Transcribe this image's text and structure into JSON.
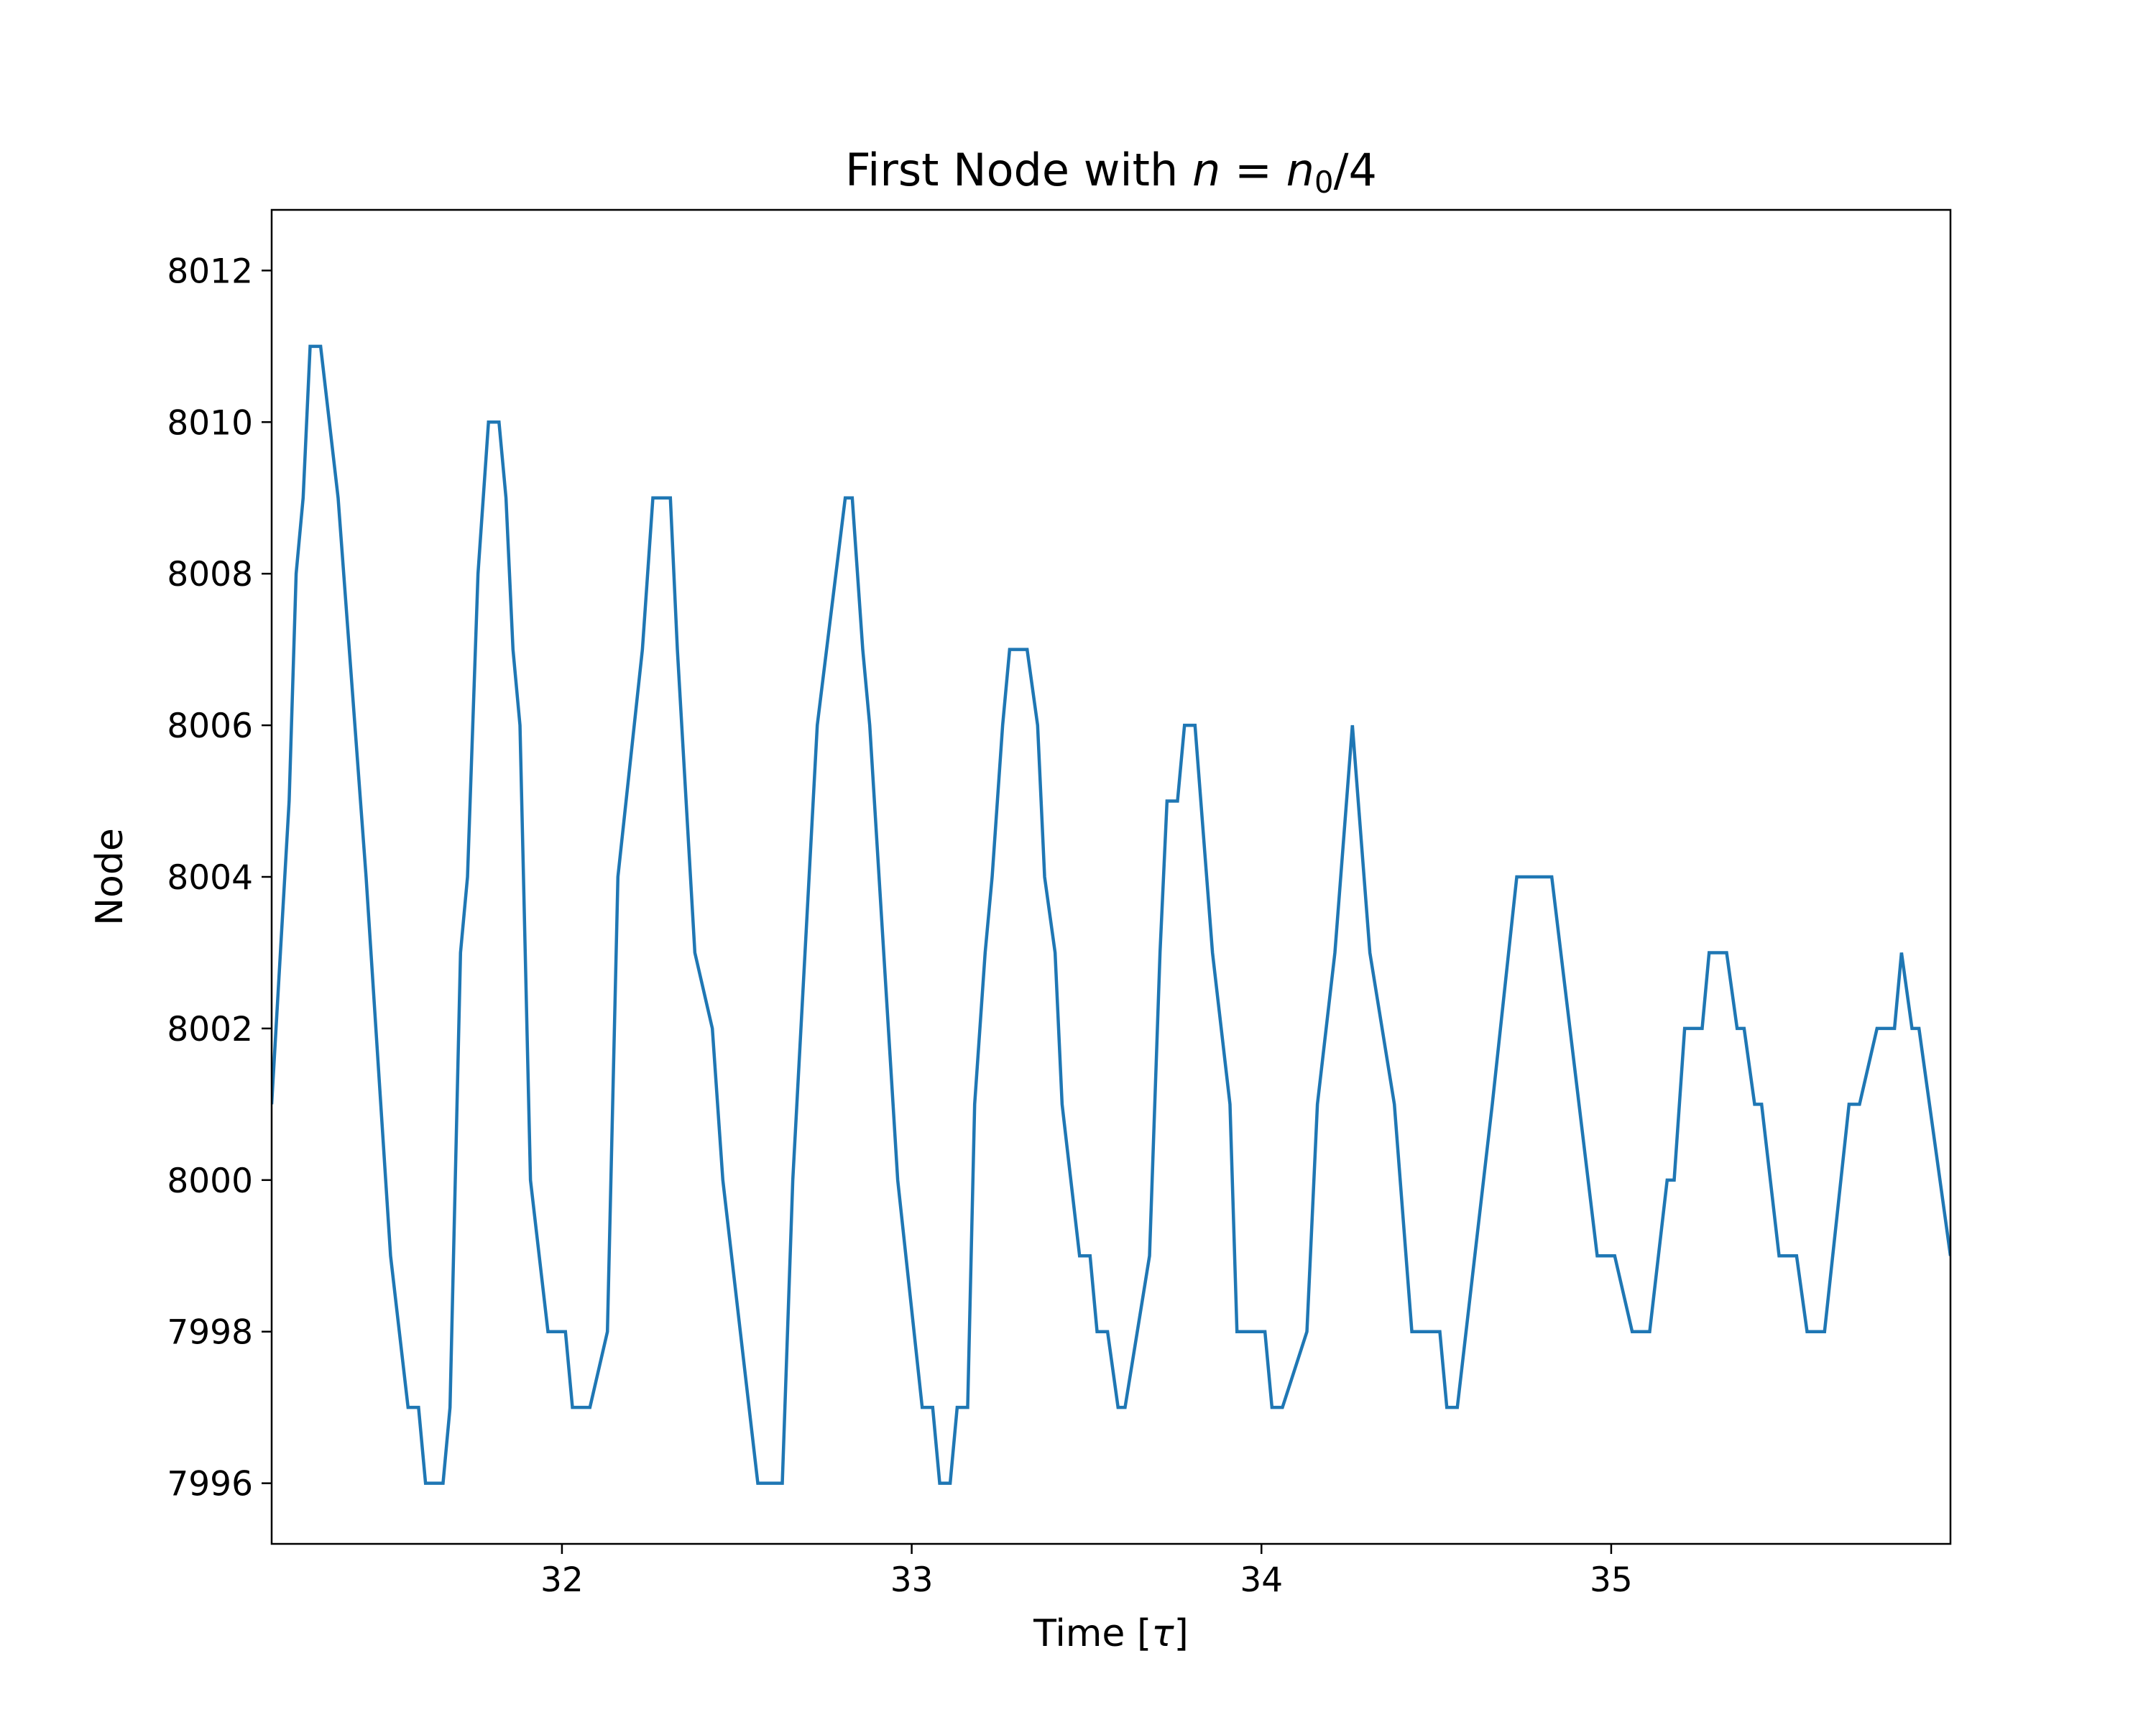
{
  "chart_data": {
    "type": "line",
    "title": {
      "prefix": "First Node with ",
      "n": "n",
      "eq": " = ",
      "n0": "n",
      "n0_sub": "0",
      "suffix": "/4"
    },
    "xlabel": {
      "text": "Time [",
      "tau": "τ",
      "close": "]"
    },
    "ylabel": "Node",
    "xlim": [
      31.17,
      35.97
    ],
    "ylim": [
      7995.2,
      8012.8
    ],
    "xticks": [
      32,
      33,
      34,
      35
    ],
    "yticks": [
      7996,
      7998,
      8000,
      8002,
      8004,
      8006,
      8008,
      8010,
      8012
    ],
    "grid": false,
    "color": "#1f77b4",
    "series": [
      {
        "x": [
          31.17,
          31.22,
          31.24,
          31.26,
          31.28,
          31.31,
          31.36,
          31.44,
          31.51,
          31.56,
          31.59,
          31.61,
          31.66,
          31.68,
          31.71,
          31.73,
          31.76,
          31.79,
          31.82,
          31.84,
          31.86,
          31.88,
          31.91,
          31.96,
          32.01,
          32.03,
          32.06,
          32.08,
          32.13,
          32.16,
          32.23,
          32.26,
          32.31,
          32.33,
          32.38,
          32.43,
          32.46,
          32.51,
          32.56,
          32.58,
          32.63,
          32.66,
          32.73,
          32.81,
          32.83,
          32.86,
          32.88,
          32.96,
          33.03,
          33.06,
          33.08,
          33.11,
          33.13,
          33.16,
          33.18,
          33.21,
          33.23,
          33.26,
          33.28,
          33.33,
          33.36,
          33.38,
          33.41,
          33.43,
          33.48,
          33.51,
          33.53,
          33.56,
          33.59,
          33.61,
          33.68,
          33.71,
          33.73,
          33.76,
          33.78,
          33.81,
          33.86,
          33.91,
          33.93,
          34.01,
          34.03,
          34.06,
          34.13,
          34.16,
          34.21,
          34.26,
          34.31,
          34.38,
          34.43,
          34.51,
          34.53,
          34.56,
          34.61,
          34.66,
          34.73,
          34.76,
          34.83,
          34.96,
          35.01,
          35.06,
          35.11,
          35.16,
          35.18,
          35.21,
          35.26,
          35.28,
          35.33,
          35.36,
          35.38,
          35.41,
          35.43,
          35.48,
          35.53,
          35.56,
          35.61,
          35.68,
          35.71,
          35.76,
          35.81,
          35.83,
          35.86,
          35.88,
          35.91,
          35.97
        ],
        "y": [
          8001,
          8005,
          8008,
          8009,
          8011,
          8011,
          8009,
          8004,
          7999,
          7997,
          7997,
          7996,
          7996,
          7997,
          8003,
          8004,
          8008,
          8010,
          8010,
          8009,
          8007,
          8006,
          8000,
          7998,
          7998,
          7997,
          7997,
          7997,
          7998,
          8004,
          8007,
          8009,
          8009,
          8007,
          8003,
          8002,
          8000,
          7998,
          7996,
          7996,
          7996,
          8000,
          8006,
          8009,
          8009,
          8007,
          8006,
          8000,
          7997,
          7997,
          7996,
          7996,
          7997,
          7997,
          8001,
          8003,
          8004,
          8006,
          8007,
          8007,
          8006,
          8004,
          8003,
          8001,
          7999,
          7999,
          7998,
          7998,
          7997,
          7997,
          7999,
          8003,
          8005,
          8005,
          8006,
          8006,
          8003,
          8001,
          7998,
          7998,
          7997,
          7997,
          7998,
          8001,
          8003,
          8006,
          8003,
          8001,
          7998,
          7998,
          7997,
          7997,
          7999,
          8001,
          8004,
          8004,
          8004,
          7999,
          7999,
          7998,
          7998,
          8000,
          8000,
          8002,
          8002,
          8003,
          8003,
          8002,
          8002,
          8001,
          8001,
          7999,
          7999,
          7998,
          7998,
          8001,
          8001,
          8002,
          8002,
          8003,
          8002,
          8002,
          8001,
          7999
        ]
      }
    ]
  }
}
